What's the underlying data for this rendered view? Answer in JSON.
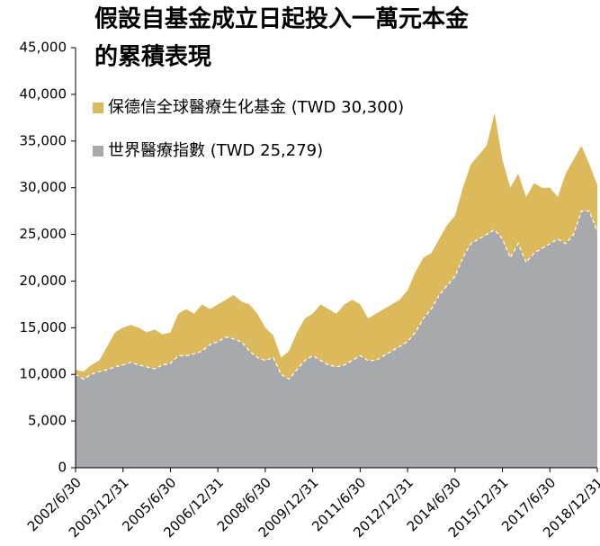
{
  "chart_data": {
    "type": "area",
    "title": [
      "假設自基金成立日起投入一萬元本金",
      "的累積表現"
    ],
    "categories": [
      "2002/6/30",
      null,
      null,
      null,
      null,
      null,
      "2003/12/31",
      null,
      null,
      null,
      null,
      null,
      "2005/6/30",
      null,
      null,
      null,
      null,
      null,
      "2006/12/31",
      null,
      null,
      null,
      null,
      null,
      "2008/6/30",
      null,
      null,
      null,
      null,
      null,
      "2009/12/31",
      null,
      null,
      null,
      null,
      null,
      "2011/6/30",
      null,
      null,
      null,
      null,
      null,
      "2012/12/31",
      null,
      null,
      null,
      null,
      null,
      "2014/6/30",
      null,
      null,
      null,
      null,
      null,
      "2015/12/31",
      null,
      null,
      null,
      null,
      null,
      "2017/6/30",
      null,
      null,
      null,
      null,
      null,
      "2018/12/31"
    ],
    "series": [
      {
        "name": "保德信全球醫療生化基金 (TWD 30,300)",
        "color": "#dcb95a",
        "values": [
          10500,
          10300,
          11000,
          11500,
          13000,
          14500,
          15000,
          15300,
          15000,
          14500,
          14800,
          14300,
          14500,
          16500,
          17000,
          16500,
          17500,
          17000,
          17500,
          18000,
          18500,
          17800,
          17500,
          16500,
          15000,
          14200,
          11800,
          12500,
          14500,
          16000,
          16500,
          17500,
          17000,
          16500,
          17500,
          18000,
          17500,
          16000,
          16500,
          17000,
          17500,
          18000,
          19000,
          21000,
          22500,
          23000,
          24500,
          26000,
          27000,
          30000,
          32500,
          33500,
          34500,
          38000,
          33000,
          30000,
          31500,
          29000,
          30500,
          30000,
          30000,
          29000,
          31500,
          33000,
          34500,
          32500,
          30300
        ]
      },
      {
        "name": "世界醫療指數 (TWD 25,279)",
        "color": "#a7a9ac",
        "values": [
          10000,
          9500,
          10000,
          10300,
          10500,
          10800,
          11000,
          11300,
          11000,
          10800,
          10600,
          11000,
          11200,
          12000,
          12000,
          12200,
          12500,
          13200,
          13500,
          14000,
          13800,
          13500,
          12500,
          11800,
          11500,
          11800,
          10000,
          9500,
          10500,
          11500,
          12000,
          11500,
          11000,
          10800,
          11000,
          11500,
          12000,
          11500,
          11500,
          12000,
          12500,
          13000,
          13500,
          14500,
          16000,
          17000,
          18500,
          19500,
          20500,
          22500,
          24000,
          24500,
          25000,
          25500,
          24500,
          22500,
          24000,
          22000,
          23000,
          23500,
          24000,
          24500,
          24000,
          25000,
          27500,
          27500,
          25279
        ]
      }
    ],
    "ylim": [
      0,
      45000
    ],
    "yticks": [
      0,
      {
        "value": 5000,
        "label": "5,000"
      },
      {
        "value": 10000,
        "label": "10,000"
      },
      {
        "value": 15000,
        "label": "15,000"
      },
      {
        "value": 20000,
        "label": "20,000"
      },
      {
        "value": 25000,
        "label": "25,000"
      },
      {
        "value": 30000,
        "label": "30,000"
      },
      {
        "value": 35000,
        "label": "35,000"
      },
      {
        "value": 40000,
        "label": "40,000"
      },
      {
        "value": 45000,
        "label": "45,000"
      }
    ]
  }
}
